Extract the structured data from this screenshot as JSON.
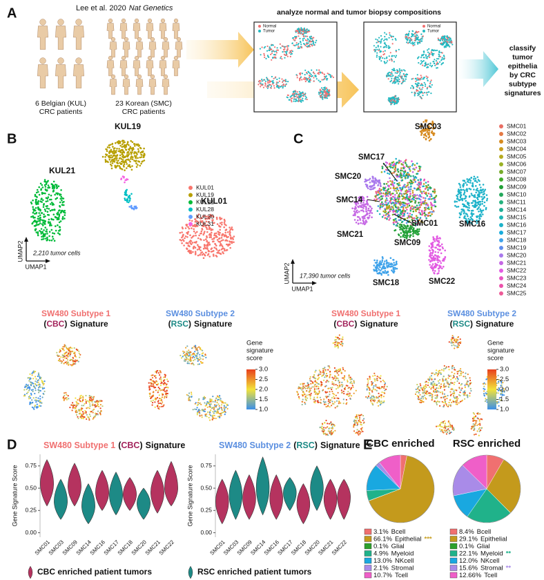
{
  "panel_a": {
    "letter": "A",
    "citation": "Lee et al. 2020",
    "journal": "Nat Genetics",
    "heading": "analyze normal and tumor biopsy compositions",
    "cohorts": [
      [
        "6 Belgian (KUL)",
        "CRC patients"
      ],
      [
        "23 Korean (SMC)",
        "CRC patients"
      ]
    ],
    "umap_legend": [
      {
        "label": "Normal",
        "color": "#f07070"
      },
      {
        "label": "Tumor",
        "color": "#22b8c0"
      }
    ],
    "conclusion": [
      "classify",
      "tumor",
      "epithelia",
      "by CRC",
      "subtype",
      "signatures"
    ]
  },
  "panel_b": {
    "letter": "B",
    "cluster_labels": [
      "KUL19",
      "KUL21",
      "KUL01"
    ],
    "legend": [
      {
        "label": "KUL01",
        "color": "#f8766d"
      },
      {
        "label": "KUL19",
        "color": "#b79f00"
      },
      {
        "label": "KUL21",
        "color": "#00ba38"
      },
      {
        "label": "KUL28",
        "color": "#00bfc4"
      },
      {
        "label": "KUL30",
        "color": "#619cff"
      },
      {
        "label": "KUL31",
        "color": "#f564e3"
      }
    ],
    "cell_count": "2,210 tumor cells",
    "x_axis": "UMAP1",
    "y_axis": "UMAP2"
  },
  "panel_c": {
    "letter": "C",
    "cluster_labels": [
      "SMC03",
      "SMC17",
      "SMC20",
      "SMC14",
      "SMC01",
      "SMC21",
      "SMC09",
      "SMC16",
      "SMC18",
      "SMC22"
    ],
    "legend": [
      {
        "label": "SMC01",
        "color": "hsl(5,75%,65%)"
      },
      {
        "label": "SMC02",
        "color": "hsl(20,75%,58%)"
      },
      {
        "label": "SMC03",
        "color": "hsl(35,75%,48%)"
      },
      {
        "label": "SMC04",
        "color": "hsl(45,75%,45%)"
      },
      {
        "label": "SMC05",
        "color": "hsl(55,70%,42%)"
      },
      {
        "label": "SMC06",
        "color": "hsl(70,65%,42%)"
      },
      {
        "label": "SMC07",
        "color": "hsl(85,60%,42%)"
      },
      {
        "label": "SMC08",
        "color": "hsl(110,60%,42%)"
      },
      {
        "label": "SMC09",
        "color": "hsl(130,65%,38%)"
      },
      {
        "label": "SMC10",
        "color": "hsl(145,65%,40%)"
      },
      {
        "label": "SMC11",
        "color": "hsl(158,65%,42%)"
      },
      {
        "label": "SMC14",
        "color": "hsl(170,70%,40%)"
      },
      {
        "label": "SMC15",
        "color": "hsl(180,70%,42%)"
      },
      {
        "label": "SMC16",
        "color": "hsl(188,75%,45%)"
      },
      {
        "label": "SMC17",
        "color": "hsl(195,80%,48%)"
      },
      {
        "label": "SMC18",
        "color": "hsl(205,80%,58%)"
      },
      {
        "label": "SMC19",
        "color": "hsl(220,80%,65%)"
      },
      {
        "label": "SMC20",
        "color": "hsl(265,75%,70%)"
      },
      {
        "label": "SMC21",
        "color": "hsl(285,70%,65%)"
      },
      {
        "label": "SMC22",
        "color": "hsl(300,70%,62%)"
      },
      {
        "label": "SMC23",
        "color": "hsl(315,75%,62%)"
      },
      {
        "label": "SMC24",
        "color": "hsl(325,80%,62%)"
      },
      {
        "label": "SMC25",
        "color": "hsl(335,80%,64%)"
      }
    ],
    "cell_count": "17,390 tumor cells",
    "x_axis": "UMAP1",
    "y_axis": "UMAP2"
  },
  "signatures": [
    [
      {
        "text": "SW480 Subtype 1",
        "color": "#f07070"
      },
      {
        "text": "(",
        "color": "#111111"
      },
      {
        "text": "CBC",
        "color": "#a3245c"
      },
      {
        "text": ")",
        "color": "#111111"
      },
      {
        "text": "Signature",
        "color": "#111111"
      }
    ],
    [
      {
        "text": "SW480 Subtype 2",
        "color": "#5b8fe0"
      },
      {
        "text": "(",
        "color": "#111111"
      },
      {
        "text": "RSC",
        "color": "#1d8a86"
      },
      {
        "text": ")",
        "color": "#111111"
      },
      {
        "text": "Signature",
        "color": "#111111"
      }
    ]
  ],
  "colorbar": {
    "title": [
      "Gene",
      "signature",
      "score"
    ],
    "range": [
      1,
      3
    ],
    "colors": [
      "#3a8fe8",
      "#f2e23a",
      "#e8401c"
    ],
    "ticks": [
      {
        "value": 1,
        "label": "1.0"
      },
      {
        "value": 1.5,
        "label": "1.5"
      },
      {
        "value": 2,
        "label": "2.0"
      },
      {
        "value": 2.5,
        "label": "2.5"
      },
      {
        "value": 3,
        "label": "3.0"
      }
    ]
  },
  "panel_d": {
    "letter": "D",
    "legend": [
      {
        "label": "CBC enriched patient tumors",
        "color": "#b5335f"
      },
      {
        "label": "RSC enriched patient tumors",
        "color": "#1d8a86"
      }
    ]
  },
  "panel_e": {
    "letter": "E"
  },
  "chart_data": [
    {
      "type": "violin",
      "ylabel": "Gene Signature Score",
      "categories": [
        "SMC01",
        "SMC03",
        "SMC09",
        "SMC14",
        "SMC16",
        "SMC17",
        "SMC18",
        "SMC20",
        "SMC21",
        "SMC22"
      ],
      "values": [
        0.55,
        0.35,
        0.52,
        0.3,
        0.45,
        0.42,
        0.43,
        0.33,
        0.45,
        0.5
      ],
      "min": [
        0.3,
        0.15,
        0.3,
        0.1,
        0.25,
        0.2,
        0.25,
        0.15,
        0.22,
        0.3
      ],
      "max": [
        0.82,
        0.6,
        0.78,
        0.55,
        0.7,
        0.68,
        0.62,
        0.5,
        0.7,
        0.8
      ],
      "colors": [
        "#b5335f",
        "#1d8a86",
        "#b5335f",
        "#1d8a86",
        "#b5335f",
        "#1d8a86",
        "#b5335f",
        "#1d8a86",
        "#b5335f",
        "#b5335f"
      ],
      "ylim": [
        -0.05,
        0.88
      ],
      "yticks": [
        {
          "value": 0,
          "label": "0.00"
        },
        {
          "value": 0.25,
          "label": "0.25"
        },
        {
          "value": 0.5,
          "label": "0.50"
        },
        {
          "value": 0.75,
          "label": "0.75"
        }
      ]
    },
    {
      "type": "violin",
      "ylabel": "Gene Signature Score",
      "categories": [
        "SMC01",
        "SMC03",
        "SMC09",
        "SMC14",
        "SMC16",
        "SMC17",
        "SMC18",
        "SMC20",
        "SMC21",
        "SMC22"
      ],
      "values": [
        0.35,
        0.42,
        0.38,
        0.5,
        0.38,
        0.45,
        0.32,
        0.5,
        0.38,
        0.4
      ],
      "min": [
        0.1,
        0.15,
        0.15,
        0.2,
        0.15,
        0.25,
        0.1,
        0.25,
        0.15,
        0.15
      ],
      "max": [
        0.6,
        0.7,
        0.65,
        0.85,
        0.65,
        0.62,
        0.55,
        0.75,
        0.6,
        0.6
      ],
      "colors": [
        "#b5335f",
        "#1d8a86",
        "#b5335f",
        "#1d8a86",
        "#b5335f",
        "#1d8a86",
        "#b5335f",
        "#1d8a86",
        "#b5335f",
        "#b5335f"
      ],
      "ylim": [
        -0.05,
        0.88
      ],
      "yticks": [
        {
          "value": 0,
          "label": "0.00"
        },
        {
          "value": 0.25,
          "label": "0.25"
        },
        {
          "value": 0.5,
          "label": "0.50"
        },
        {
          "value": 0.75,
          "label": "0.75"
        }
      ]
    },
    {
      "type": "pie",
      "title": "CBC enriched",
      "title_color": "#a3245c",
      "categories": [
        "Bcell",
        "Epithelial",
        "Glial",
        "Myeloid",
        "NKcell",
        "Stromal",
        "Tcell"
      ],
      "values": [
        3.1,
        66.1,
        0.1,
        4.9,
        13.0,
        2.1,
        10.7
      ],
      "value_labels": [
        "3.1%",
        "66.1%",
        "0.1%",
        "4.9%",
        "13.0%",
        "2.1%",
        "10.7%"
      ],
      "colors": [
        "#f07070",
        "#c49a1c",
        "#2ca02c",
        "#20b28a",
        "#19a8e0",
        "#a98be8",
        "#ef5fc8"
      ],
      "annotations": [
        null,
        {
          "text": "***",
          "color": "#c9a227"
        },
        null,
        null,
        null,
        null,
        null
      ]
    },
    {
      "type": "pie",
      "title": "RSC enriched",
      "title_color": "#1d8a86",
      "categories": [
        "Bcell",
        "Epithelial",
        "Glial",
        "Myeloid",
        "NKcell",
        "Stromal",
        "Tcell"
      ],
      "values": [
        8.4,
        29.1,
        0.1,
        22.1,
        12.0,
        15.6,
        12.66
      ],
      "value_labels": [
        "8.4%",
        "29.1%",
        "0.1%",
        "22.1%",
        "12.0%",
        "15.6%",
        "12.66%"
      ],
      "colors": [
        "#f07070",
        "#c49a1c",
        "#2ca02c",
        "#20b28a",
        "#19a8e0",
        "#a98be8",
        "#ef5fc8"
      ],
      "annotations": [
        null,
        null,
        null,
        {
          "text": "**",
          "color": "#1db08a"
        },
        null,
        {
          "text": "**",
          "color": "#a98be8"
        },
        null
      ]
    }
  ]
}
